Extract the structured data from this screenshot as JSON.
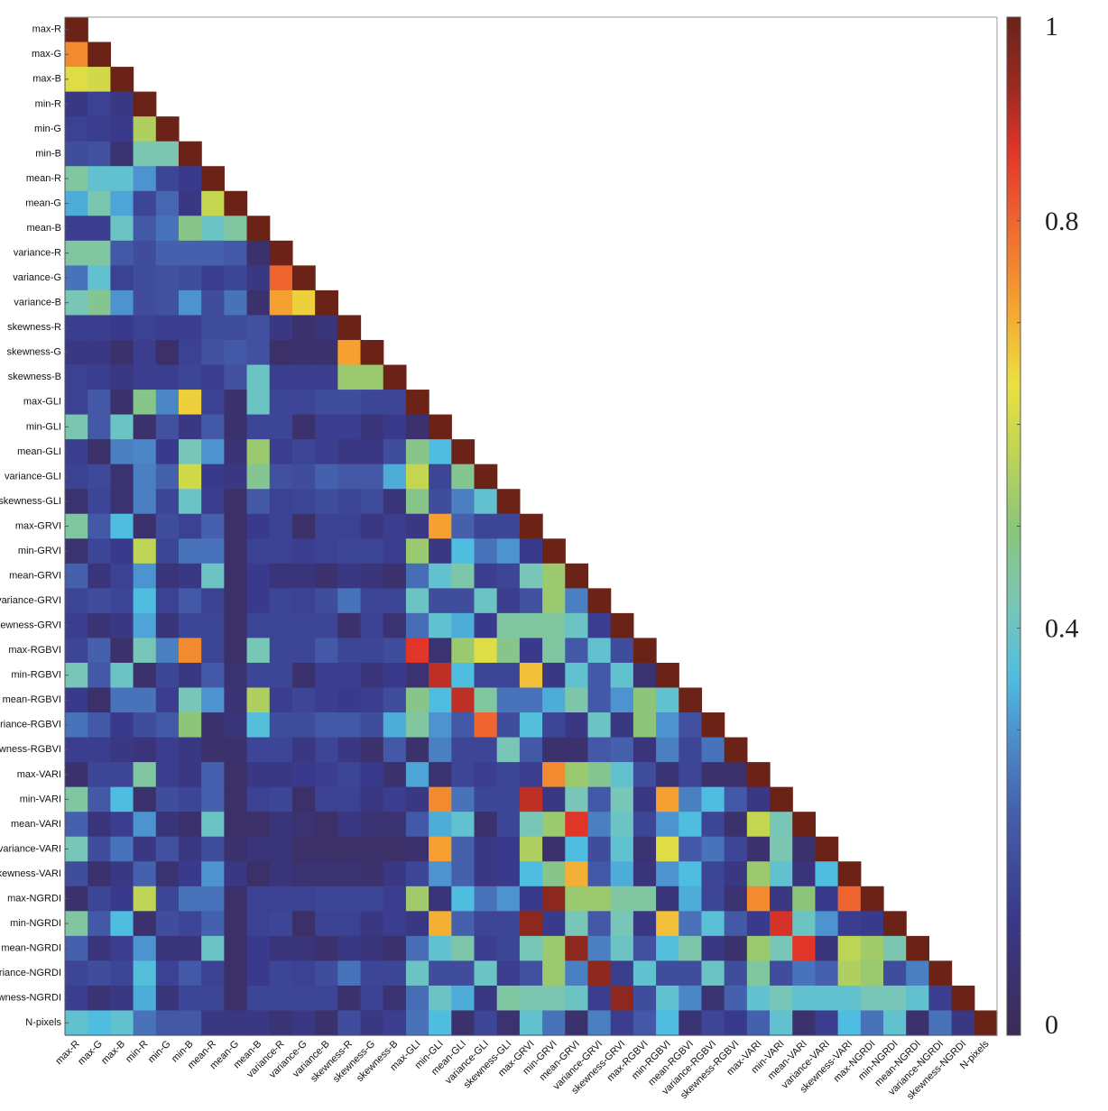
{
  "chart_data": {
    "type": "heatmap",
    "title": "",
    "labels": [
      "max-R",
      "max-G",
      "max-B",
      "min-R",
      "min-G",
      "min-B",
      "mean-R",
      "mean-G",
      "mean-B",
      "variance-R",
      "variance-G",
      "variance-B",
      "skewness-R",
      "skewness-G",
      "skewness-B",
      "max-GLI",
      "min-GLI",
      "mean-GLI",
      "variance-GLI",
      "skewness-GLI",
      "max-GRVI",
      "min-GRVI",
      "mean-GRVI",
      "variance-GRVI",
      "skewness-GRVI",
      "max-RGBVI",
      "min-RGBVI",
      "mean-RGBVI",
      "variance-RGBVI",
      "skewness-RGBVI",
      "max-VARI",
      "min-VARI",
      "mean-VARI",
      "variance-VARI",
      "skewness-VARI",
      "max-NGRDI",
      "min-NGRDI",
      "mean-NGRDI",
      "variance-NGRDI",
      "skewness-NGRDI",
      "N-pixels"
    ],
    "lower_triangular": true,
    "values": [
      [
        1
      ],
      [
        0.75,
        1
      ],
      [
        0.62,
        0.6,
        1
      ],
      [
        0.1,
        0.14,
        0.1,
        1
      ],
      [
        0.14,
        0.13,
        0.12,
        0.55,
        1
      ],
      [
        0.17,
        0.18,
        0.06,
        0.43,
        0.43,
        1
      ],
      [
        0.45,
        0.38,
        0.38,
        0.3,
        0.15,
        0.12,
        1
      ],
      [
        0.33,
        0.43,
        0.32,
        0.15,
        0.23,
        0.1,
        0.58,
        1
      ],
      [
        0.13,
        0.13,
        0.4,
        0.2,
        0.25,
        0.48,
        0.4,
        0.45,
        1
      ],
      [
        0.45,
        0.45,
        0.2,
        0.17,
        0.22,
        0.22,
        0.22,
        0.2,
        0.05,
        1
      ],
      [
        0.25,
        0.38,
        0.14,
        0.17,
        0.18,
        0.17,
        0.13,
        0.15,
        0.1,
        0.8,
        1
      ],
      [
        0.42,
        0.47,
        0.3,
        0.17,
        0.18,
        0.3,
        0.17,
        0.25,
        0.05,
        0.72,
        0.66,
        1
      ],
      [
        0.13,
        0.13,
        0.12,
        0.14,
        0.13,
        0.13,
        0.17,
        0.17,
        0.18,
        0.1,
        0.05,
        0.08,
        1
      ],
      [
        0.1,
        0.1,
        0.05,
        0.13,
        0.04,
        0.14,
        0.18,
        0.2,
        0.18,
        0.04,
        0.05,
        0.05,
        0.72,
        1
      ],
      [
        0.14,
        0.13,
        0.1,
        0.13,
        0.13,
        0.15,
        0.13,
        0.18,
        0.4,
        0.13,
        0.13,
        0.13,
        0.52,
        0.52,
        1
      ],
      [
        0.14,
        0.2,
        0.05,
        0.48,
        0.28,
        0.66,
        0.14,
        0.05,
        0.4,
        0.15,
        0.15,
        0.17,
        0.17,
        0.15,
        0.15,
        1
      ],
      [
        0.43,
        0.2,
        0.4,
        0.05,
        0.18,
        0.1,
        0.2,
        0.05,
        0.15,
        0.15,
        0.05,
        0.13,
        0.13,
        0.08,
        0.12,
        0.05,
        1
      ],
      [
        0.13,
        0.04,
        0.27,
        0.28,
        0.12,
        0.42,
        0.3,
        0.07,
        0.52,
        0.13,
        0.15,
        0.13,
        0.1,
        0.1,
        0.17,
        0.48,
        0.35,
        1
      ],
      [
        0.14,
        0.16,
        0.06,
        0.27,
        0.22,
        0.6,
        0.12,
        0.1,
        0.47,
        0.18,
        0.17,
        0.22,
        0.2,
        0.2,
        0.33,
        0.58,
        0.15,
        0.47,
        1
      ],
      [
        0.06,
        0.15,
        0.06,
        0.27,
        0.15,
        0.4,
        0.13,
        0.04,
        0.2,
        0.14,
        0.15,
        0.17,
        0.15,
        0.17,
        0.08,
        0.48,
        0.17,
        0.27,
        0.38,
        1
      ],
      [
        0.45,
        0.2,
        0.35,
        0.05,
        0.17,
        0.14,
        0.22,
        0.04,
        0.12,
        0.14,
        0.04,
        0.14,
        0.14,
        0.1,
        0.13,
        0.1,
        0.72,
        0.22,
        0.15,
        0.15,
        1
      ],
      [
        0.06,
        0.15,
        0.12,
        0.57,
        0.15,
        0.25,
        0.25,
        0.04,
        0.14,
        0.14,
        0.13,
        0.14,
        0.15,
        0.15,
        0.13,
        0.52,
        0.1,
        0.35,
        0.25,
        0.3,
        0.12,
        1
      ],
      [
        0.22,
        0.08,
        0.14,
        0.3,
        0.08,
        0.1,
        0.4,
        0.04,
        0.12,
        0.08,
        0.08,
        0.05,
        0.1,
        0.08,
        0.05,
        0.24,
        0.38,
        0.44,
        0.13,
        0.15,
        0.42,
        0.52,
        1
      ],
      [
        0.15,
        0.17,
        0.15,
        0.35,
        0.14,
        0.2,
        0.14,
        0.04,
        0.12,
        0.15,
        0.14,
        0.17,
        0.25,
        0.15,
        0.15,
        0.4,
        0.17,
        0.17,
        0.4,
        0.13,
        0.18,
        0.52,
        0.27,
        1
      ],
      [
        0.13,
        0.07,
        0.1,
        0.32,
        0.08,
        0.15,
        0.15,
        0.04,
        0.15,
        0.15,
        0.15,
        0.15,
        0.05,
        0.14,
        0.06,
        0.24,
        0.38,
        0.33,
        0.12,
        0.45,
        0.45,
        0.45,
        0.4,
        0.13,
        1
      ],
      [
        0.15,
        0.22,
        0.05,
        0.42,
        0.27,
        0.75,
        0.15,
        0.04,
        0.42,
        0.15,
        0.15,
        0.2,
        0.15,
        0.15,
        0.17,
        0.87,
        0.06,
        0.52,
        0.62,
        0.48,
        0.12,
        0.45,
        0.2,
        0.38,
        0.17,
        1
      ],
      [
        0.42,
        0.2,
        0.4,
        0.05,
        0.15,
        0.1,
        0.2,
        0.06,
        0.15,
        0.15,
        0.05,
        0.13,
        0.13,
        0.08,
        0.12,
        0.06,
        0.9,
        0.35,
        0.15,
        0.15,
        0.68,
        0.1,
        0.38,
        0.2,
        0.38,
        0.06,
        1
      ],
      [
        0.12,
        0.04,
        0.25,
        0.25,
        0.13,
        0.42,
        0.3,
        0.07,
        0.55,
        0.13,
        0.15,
        0.13,
        0.12,
        0.13,
        0.17,
        0.48,
        0.35,
        0.9,
        0.45,
        0.25,
        0.25,
        0.33,
        0.44,
        0.2,
        0.3,
        0.5,
        0.38,
        1
      ],
      [
        0.25,
        0.2,
        0.12,
        0.17,
        0.2,
        0.5,
        0.05,
        0.08,
        0.36,
        0.17,
        0.17,
        0.2,
        0.2,
        0.17,
        0.33,
        0.45,
        0.3,
        0.2,
        0.8,
        0.17,
        0.36,
        0.15,
        0.1,
        0.4,
        0.1,
        0.5,
        0.3,
        0.18,
        1
      ],
      [
        0.13,
        0.13,
        0.1,
        0.08,
        0.13,
        0.1,
        0.05,
        0.05,
        0.15,
        0.15,
        0.1,
        0.15,
        0.1,
        0.05,
        0.2,
        0.05,
        0.27,
        0.15,
        0.15,
        0.42,
        0.2,
        0.05,
        0.05,
        0.2,
        0.22,
        0.08,
        0.27,
        0.15,
        0.25,
        1
      ],
      [
        0.05,
        0.15,
        0.15,
        0.45,
        0.13,
        0.1,
        0.22,
        0.04,
        0.1,
        0.1,
        0.12,
        0.13,
        0.15,
        0.12,
        0.05,
        0.32,
        0.06,
        0.15,
        0.13,
        0.15,
        0.13,
        0.75,
        0.52,
        0.47,
        0.38,
        0.17,
        0.07,
        0.15,
        0.05,
        0.05,
        1
      ],
      [
        0.45,
        0.2,
        0.35,
        0.05,
        0.17,
        0.15,
        0.22,
        0.04,
        0.14,
        0.15,
        0.04,
        0.14,
        0.14,
        0.1,
        0.13,
        0.1,
        0.75,
        0.25,
        0.15,
        0.15,
        0.9,
        0.1,
        0.42,
        0.2,
        0.42,
        0.1,
        0.72,
        0.27,
        0.35,
        0.2,
        0.1,
        1
      ],
      [
        0.22,
        0.08,
        0.13,
        0.3,
        0.08,
        0.05,
        0.4,
        0.04,
        0.04,
        0.08,
        0.06,
        0.04,
        0.1,
        0.07,
        0.06,
        0.2,
        0.33,
        0.38,
        0.05,
        0.15,
        0.42,
        0.52,
        0.87,
        0.27,
        0.4,
        0.15,
        0.3,
        0.35,
        0.15,
        0.05,
        0.58,
        0.42,
        1
      ],
      [
        0.42,
        0.17,
        0.25,
        0.1,
        0.18,
        0.1,
        0.17,
        0.05,
        0.08,
        0.08,
        0.04,
        0.04,
        0.04,
        0.04,
        0.04,
        0.05,
        0.72,
        0.22,
        0.1,
        0.12,
        0.55,
        0.05,
        0.35,
        0.17,
        0.38,
        0.06,
        0.62,
        0.2,
        0.25,
        0.15,
        0.05,
        0.43,
        0.05,
        1
      ],
      [
        0.17,
        0.05,
        0.1,
        0.22,
        0.06,
        0.12,
        0.3,
        0.1,
        0.04,
        0.08,
        0.06,
        0.06,
        0.06,
        0.05,
        0.1,
        0.15,
        0.3,
        0.22,
        0.1,
        0.12,
        0.35,
        0.48,
        0.7,
        0.2,
        0.33,
        0.08,
        0.3,
        0.35,
        0.15,
        0.1,
        0.52,
        0.38,
        0.08,
        0.35,
        1
      ],
      [
        0.05,
        0.15,
        0.12,
        0.57,
        0.15,
        0.25,
        0.25,
        0.04,
        0.14,
        0.14,
        0.14,
        0.15,
        0.15,
        0.15,
        0.13,
        0.53,
        0.08,
        0.35,
        0.25,
        0.3,
        0.12,
        0.95,
        0.52,
        0.52,
        0.45,
        0.45,
        0.08,
        0.33,
        0.15,
        0.06,
        0.75,
        0.1,
        0.5,
        0.12,
        0.8,
        1
      ],
      [
        0.45,
        0.2,
        0.35,
        0.05,
        0.17,
        0.15,
        0.22,
        0.04,
        0.14,
        0.15,
        0.04,
        0.14,
        0.14,
        0.1,
        0.13,
        0.1,
        0.7,
        0.22,
        0.15,
        0.15,
        0.95,
        0.12,
        0.42,
        0.2,
        0.42,
        0.1,
        0.68,
        0.25,
        0.37,
        0.2,
        0.12,
        0.88,
        0.4,
        0.3,
        0.13,
        0.12,
        1
      ],
      [
        0.22,
        0.08,
        0.13,
        0.3,
        0.08,
        0.08,
        0.4,
        0.04,
        0.12,
        0.08,
        0.08,
        0.05,
        0.1,
        0.08,
        0.05,
        0.24,
        0.38,
        0.44,
        0.13,
        0.15,
        0.42,
        0.52,
        0.95,
        0.27,
        0.4,
        0.18,
        0.36,
        0.44,
        0.1,
        0.05,
        0.52,
        0.42,
        0.87,
        0.08,
        0.57,
        0.53,
        0.43,
        1
      ],
      [
        0.15,
        0.17,
        0.15,
        0.36,
        0.14,
        0.2,
        0.14,
        0.04,
        0.12,
        0.15,
        0.14,
        0.17,
        0.25,
        0.15,
        0.15,
        0.4,
        0.17,
        0.17,
        0.4,
        0.13,
        0.18,
        0.52,
        0.27,
        0.95,
        0.13,
        0.38,
        0.17,
        0.17,
        0.4,
        0.17,
        0.45,
        0.17,
        0.25,
        0.22,
        0.55,
        0.52,
        0.17,
        0.27,
        1
      ],
      [
        0.13,
        0.07,
        0.1,
        0.33,
        0.08,
        0.15,
        0.15,
        0.04,
        0.15,
        0.15,
        0.15,
        0.15,
        0.05,
        0.14,
        0.06,
        0.24,
        0.4,
        0.33,
        0.1,
        0.45,
        0.43,
        0.43,
        0.4,
        0.13,
        0.95,
        0.17,
        0.38,
        0.28,
        0.06,
        0.22,
        0.38,
        0.42,
        0.38,
        0.38,
        0.38,
        0.42,
        0.42,
        0.38,
        0.13,
        1
      ],
      [
        0.38,
        0.35,
        0.38,
        0.25,
        0.2,
        0.2,
        0.1,
        0.1,
        0.1,
        0.07,
        0.1,
        0.05,
        0.17,
        0.1,
        0.13,
        0.25,
        0.35,
        0.05,
        0.15,
        0.06,
        0.38,
        0.25,
        0.05,
        0.27,
        0.13,
        0.2,
        0.35,
        0.07,
        0.15,
        0.12,
        0.22,
        0.38,
        0.05,
        0.13,
        0.35,
        0.25,
        0.38,
        0.05,
        0.25,
        0.1,
        1
      ]
    ],
    "colorbar": {
      "range": [
        0,
        1
      ],
      "tick_labels": [
        "0",
        "0.4",
        "0.8",
        "1"
      ],
      "ticks": [
        0,
        0.4,
        0.8,
        1
      ],
      "colormap": "jet"
    },
    "grid": false,
    "legend": "colorbar-right"
  }
}
